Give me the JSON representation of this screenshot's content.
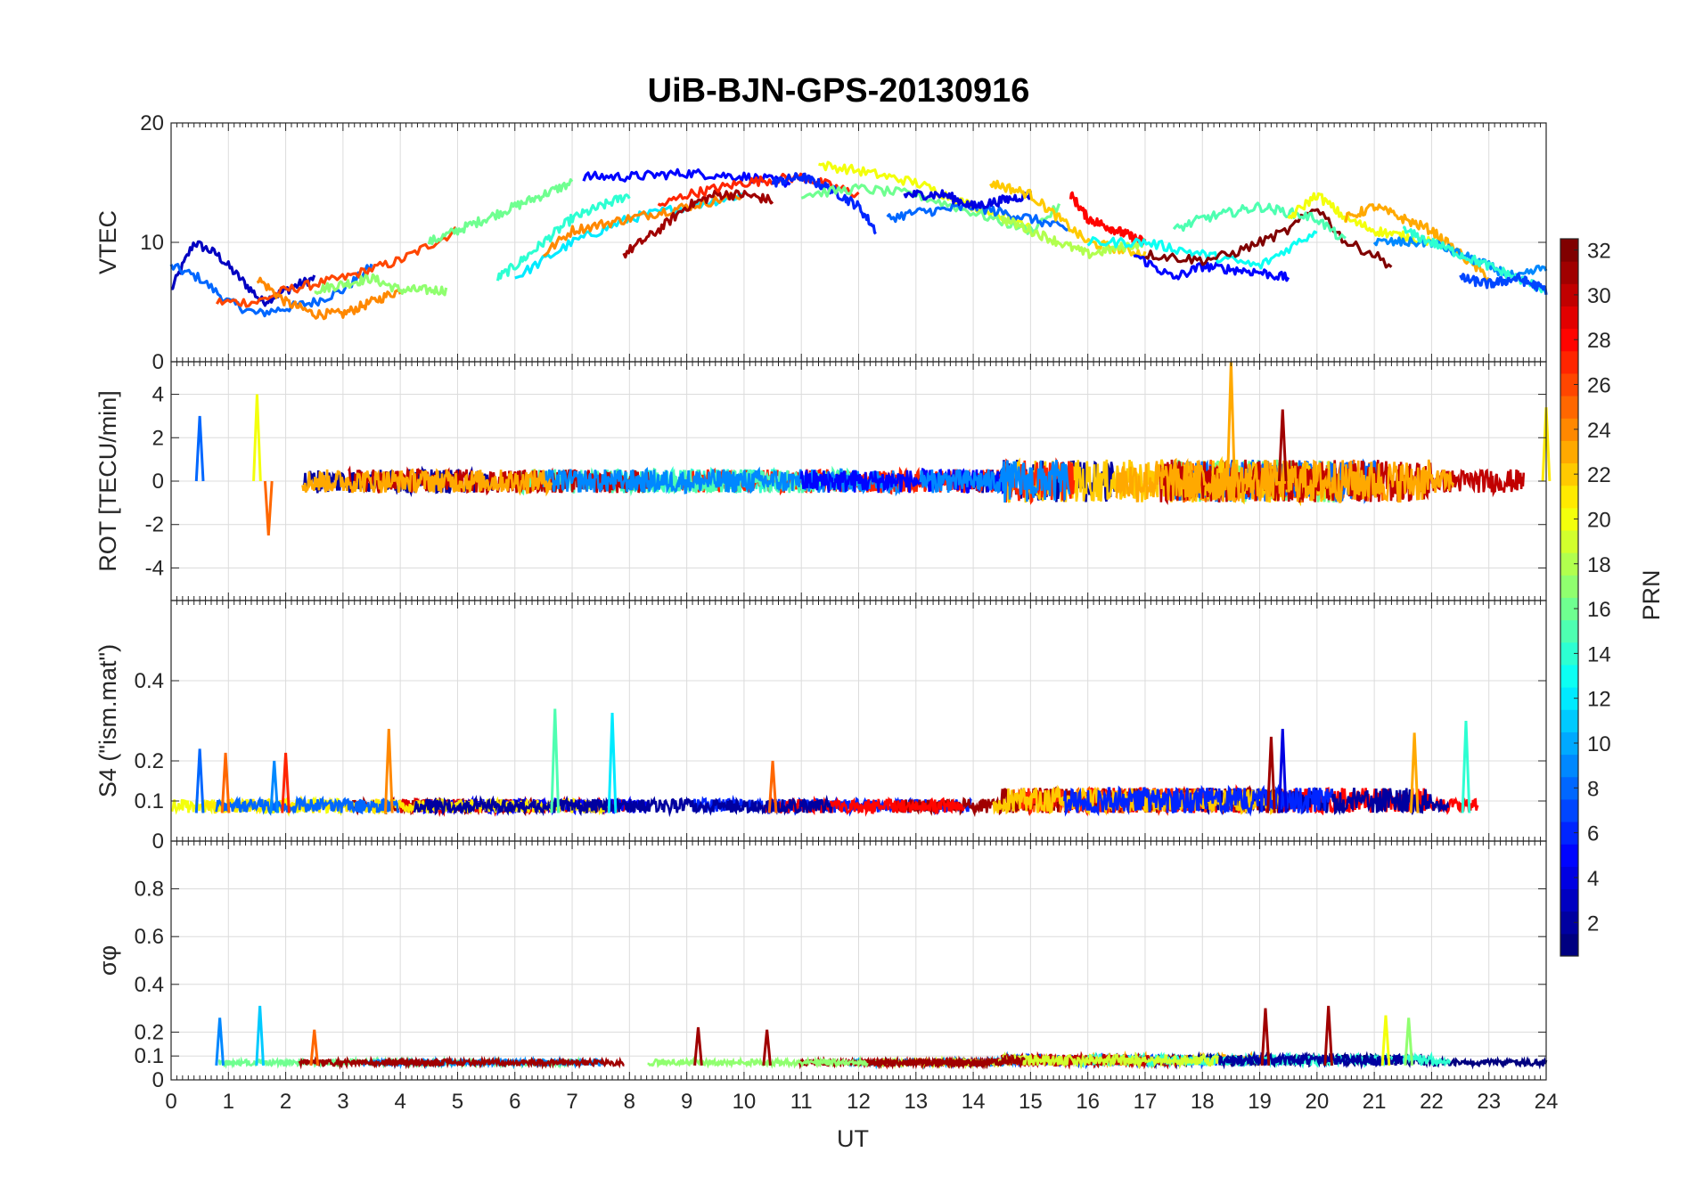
{
  "figure": {
    "title": "UiB-BJN-GPS-20130916",
    "xlabel": "UT",
    "colorbar_label": "PRN"
  },
  "chart_data": [
    {
      "type": "line",
      "panel": "vtec",
      "ylabel": "VTEC",
      "xlim": [
        0,
        24
      ],
      "ylim": [
        0,
        20
      ],
      "yticks": [
        0,
        10,
        20
      ],
      "series_count": 32,
      "description_values": "VTEC arcs per PRN, ~4-16 TECU",
      "series": [
        {
          "prn": 3,
          "x": [
            0,
            0.4,
            0.8,
            1.2,
            1.6,
            2.0,
            2.5
          ],
          "y": [
            6,
            10,
            9,
            7,
            5,
            6,
            7
          ]
        },
        {
          "prn": 8,
          "x": [
            0,
            0.5,
            1.0,
            1.5,
            2.0,
            2.5,
            3.0,
            3.5
          ],
          "y": [
            8,
            7,
            5,
            4,
            4.5,
            5,
            6,
            8
          ]
        },
        {
          "prn": 26,
          "x": [
            0.8,
            1.5,
            2.0,
            3.0,
            4.0,
            5.0
          ],
          "y": [
            5,
            5,
            6,
            7,
            8.5,
            11
          ]
        },
        {
          "prn": 24,
          "x": [
            1.5,
            2.0,
            2.5,
            3.0,
            3.5,
            4.0
          ],
          "y": [
            7,
            5,
            4,
            4,
            5,
            6
          ]
        },
        {
          "prn": 17,
          "x": [
            2.5,
            3.0,
            3.5,
            4.0,
            4.8
          ],
          "y": [
            6,
            6.5,
            7,
            6,
            6
          ]
        },
        {
          "prn": 16,
          "x": [
            4.5,
            5.0,
            6.0,
            7.0
          ],
          "y": [
            10,
            11,
            13,
            15
          ]
        },
        {
          "prn": 14,
          "x": [
            5.7,
            6.0,
            6.5,
            7.0,
            7.5,
            8.0
          ],
          "y": [
            7,
            8,
            10,
            12,
            13,
            14
          ]
        },
        {
          "prn": 12,
          "x": [
            6.0,
            7.0,
            8.0,
            9.0,
            10.0
          ],
          "y": [
            7,
            10,
            12,
            13,
            14
          ]
        },
        {
          "prn": 24,
          "x": [
            6.5,
            7.0,
            8.0,
            9.0,
            10.0
          ],
          "y": [
            9,
            11,
            12,
            13,
            14
          ]
        },
        {
          "prn": 5,
          "x": [
            7.2,
            8.0,
            9.0,
            10.0,
            10.8
          ],
          "y": [
            15.5,
            15.5,
            15.8,
            15.5,
            15
          ]
        },
        {
          "prn": 31,
          "x": [
            7.9,
            8.5,
            9.0,
            9.5,
            10.0,
            10.5
          ],
          "y": [
            9,
            11,
            13,
            14,
            14,
            13.5
          ]
        },
        {
          "prn": 27,
          "x": [
            8.5,
            9.0,
            10.0,
            11.0,
            12.0
          ],
          "y": [
            13,
            14,
            15,
            15.5,
            14
          ]
        },
        {
          "prn": 6,
          "x": [
            10.5,
            11.0,
            11.5,
            12.0,
            12.3
          ],
          "y": [
            15,
            15.5,
            14.5,
            13,
            11
          ]
        },
        {
          "prn": 20,
          "x": [
            11.3,
            12.0,
            13.0,
            14.0,
            15.0
          ],
          "y": [
            16.5,
            16,
            15,
            13,
            11.5
          ]
        },
        {
          "prn": 16,
          "x": [
            11.0,
            12.0,
            13.0,
            14.0,
            15.0,
            15.5
          ],
          "y": [
            14,
            14.5,
            14,
            12.5,
            11,
            13
          ]
        },
        {
          "prn": 8,
          "x": [
            12.5,
            13.0,
            14.0,
            15.0,
            15.7
          ],
          "y": [
            12,
            12.5,
            13,
            12,
            11
          ]
        },
        {
          "prn": 4,
          "x": [
            12.8,
            13.5,
            14.0,
            15.0
          ],
          "y": [
            14,
            14,
            13,
            14
          ]
        },
        {
          "prn": 22,
          "x": [
            14.3,
            15.0,
            15.5,
            16.0,
            17.0
          ],
          "y": [
            15,
            14,
            12,
            10,
            9
          ]
        },
        {
          "prn": 18,
          "x": [
            14.5,
            15.0,
            16.0,
            17.0
          ],
          "y": [
            12,
            11,
            9,
            10
          ]
        },
        {
          "prn": 28,
          "x": [
            15.7,
            16.0,
            16.5,
            17.0
          ],
          "y": [
            14,
            12,
            11,
            10
          ]
        },
        {
          "prn": 5,
          "x": [
            16.8,
            17.5,
            18.0,
            19.0,
            19.5
          ],
          "y": [
            9,
            7,
            8,
            7.5,
            7
          ]
        },
        {
          "prn": 13,
          "x": [
            16.0,
            17.0,
            18.0,
            19.0,
            20.0
          ],
          "y": [
            10,
            10,
            9,
            8,
            11
          ]
        },
        {
          "prn": 32,
          "x": [
            17.0,
            18.0,
            18.5,
            19.0,
            19.5,
            20.0,
            20.5,
            21.0,
            21.3
          ],
          "y": [
            9,
            8.5,
            9,
            10,
            11,
            13,
            10,
            9,
            8
          ]
        },
        {
          "prn": 15,
          "x": [
            17.5,
            18.0,
            19.0,
            20.0,
            20.5
          ],
          "y": [
            11,
            12,
            13,
            12,
            10
          ]
        },
        {
          "prn": 20,
          "x": [
            19.5,
            20.0,
            20.5,
            21.0,
            22.0
          ],
          "y": [
            12,
            14,
            12,
            11,
            10
          ]
        },
        {
          "prn": 23,
          "x": [
            20.5,
            21.0,
            21.5,
            22.0,
            22.5,
            23.0
          ],
          "y": [
            12,
            13,
            12,
            11,
            9,
            7
          ]
        },
        {
          "prn": 9,
          "x": [
            21.0,
            22.0,
            23.0,
            23.5,
            24.0
          ],
          "y": [
            10,
            10,
            8,
            7,
            8
          ]
        },
        {
          "prn": 14,
          "x": [
            21.5,
            22.0,
            23.0,
            24.0
          ],
          "y": [
            11,
            10,
            8,
            6
          ]
        },
        {
          "prn": 7,
          "x": [
            22.5,
            23.0,
            23.5,
            24.0
          ],
          "y": [
            7,
            6.5,
            7,
            6
          ]
        }
      ]
    },
    {
      "type": "line",
      "panel": "rot",
      "ylabel": "ROT [TECU/min]",
      "xlim": [
        0,
        24
      ],
      "ylim": [
        -5.5,
        5.5
      ],
      "yticks": [
        -4,
        -2,
        0,
        2,
        4
      ],
      "series_count": 32,
      "peaks": [
        {
          "x": 0.5,
          "y": 3,
          "prn": 8
        },
        {
          "x": 1.5,
          "y": 4,
          "prn": 20
        },
        {
          "x": 1.7,
          "y": -2.5,
          "prn": 25
        },
        {
          "x": 18.5,
          "y": 5.5,
          "prn": 23
        },
        {
          "x": 19.4,
          "y": 3.3,
          "prn": 31
        },
        {
          "x": 24.0,
          "y": 3.4,
          "prn": 21
        }
      ]
    },
    {
      "type": "line",
      "panel": "s4",
      "ylabel": "S4 (\"ism.mat\")",
      "xlim": [
        0,
        24
      ],
      "ylim": [
        0,
        0.6
      ],
      "yticks": [
        0,
        0.1,
        0.2,
        0.4
      ],
      "series_count": 32,
      "peaks": [
        {
          "x": 0.5,
          "y": 0.23,
          "prn": 8
        },
        {
          "x": 0.95,
          "y": 0.22,
          "prn": 25
        },
        {
          "x": 1.8,
          "y": 0.2,
          "prn": 9
        },
        {
          "x": 2.0,
          "y": 0.22,
          "prn": 27
        },
        {
          "x": 3.8,
          "y": 0.28,
          "prn": 24
        },
        {
          "x": 6.7,
          "y": 0.33,
          "prn": 15
        },
        {
          "x": 7.7,
          "y": 0.32,
          "prn": 12
        },
        {
          "x": 10.5,
          "y": 0.2,
          "prn": 25
        },
        {
          "x": 19.4,
          "y": 0.28,
          "prn": 4
        },
        {
          "x": 19.2,
          "y": 0.26,
          "prn": 31
        },
        {
          "x": 21.7,
          "y": 0.27,
          "prn": 23
        },
        {
          "x": 22.6,
          "y": 0.3,
          "prn": 14
        }
      ]
    },
    {
      "type": "line",
      "panel": "sigma_phi",
      "ylabel": "σφ",
      "xlim": [
        0,
        24
      ],
      "ylim": [
        0,
        1
      ],
      "yticks": [
        0,
        0.1,
        0.2,
        0.4,
        0.6,
        0.8
      ],
      "xticks": [
        0,
        1,
        2,
        3,
        4,
        5,
        6,
        7,
        8,
        9,
        10,
        11,
        12,
        13,
        14,
        15,
        16,
        17,
        18,
        19,
        20,
        21,
        22,
        23,
        24
      ],
      "series_count": 32,
      "peaks": [
        {
          "x": 0.85,
          "y": 0.26,
          "prn": 9
        },
        {
          "x": 1.55,
          "y": 0.31,
          "prn": 11
        },
        {
          "x": 2.5,
          "y": 0.21,
          "prn": 25
        },
        {
          "x": 9.2,
          "y": 0.22,
          "prn": 31
        },
        {
          "x": 10.4,
          "y": 0.21,
          "prn": 31
        },
        {
          "x": 19.1,
          "y": 0.3,
          "prn": 31
        },
        {
          "x": 20.2,
          "y": 0.31,
          "prn": 31
        },
        {
          "x": 21.2,
          "y": 0.27,
          "prn": 20
        },
        {
          "x": 21.6,
          "y": 0.26,
          "prn": 17
        }
      ]
    },
    {
      "type": "colorbar",
      "label": "PRN",
      "range": [
        1,
        32
      ],
      "ticks": [
        2,
        4,
        6,
        8,
        10,
        12,
        14,
        16,
        18,
        20,
        22,
        24,
        26,
        28,
        30,
        32
      ],
      "colormap": "jet"
    }
  ]
}
